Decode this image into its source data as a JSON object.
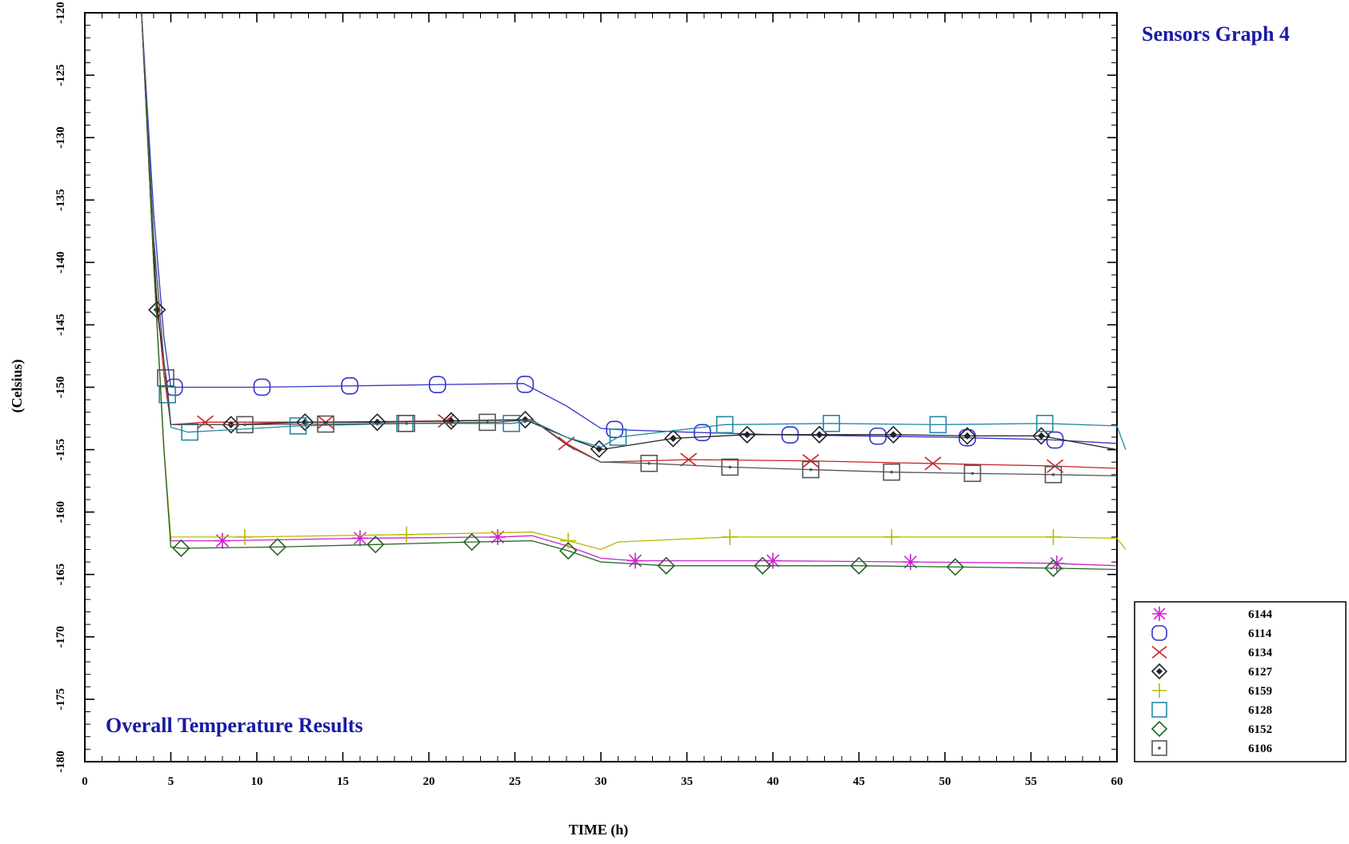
{
  "chart_data": {
    "type": "line",
    "title": "Sensors Graph 4",
    "subtitle": "Overall Temperature Results",
    "xlabel": "TIME (h)",
    "ylabel": "(Celsius)",
    "xlim": [
      0,
      60
    ],
    "ylim": [
      -180,
      -120
    ],
    "xticks": [
      0,
      5,
      10,
      15,
      20,
      25,
      30,
      35,
      40,
      45,
      50,
      55,
      60
    ],
    "yticks": [
      -120,
      -125,
      -130,
      -135,
      -140,
      -145,
      -150,
      -155,
      -160,
      -165,
      -170,
      -175,
      -180
    ],
    "legend_position": "right-bottom-outside",
    "grid": false,
    "series": [
      {
        "name": "6144",
        "color": "#cc22cc",
        "marker": "asterisk",
        "points": [
          [
            3.3,
            -120
          ],
          [
            4,
            -140
          ],
          [
            4.6,
            -155
          ],
          [
            5,
            -162.3
          ],
          [
            8,
            -162.3
          ],
          [
            16,
            -162.1
          ],
          [
            24,
            -162
          ],
          [
            26,
            -161.9
          ],
          [
            28,
            -162.7
          ],
          [
            30,
            -163.7
          ],
          [
            32,
            -163.9
          ],
          [
            40,
            -163.9
          ],
          [
            48,
            -164
          ],
          [
            56,
            -164.1
          ],
          [
            60,
            -164.3
          ]
        ],
        "markers": [
          8,
          16,
          24,
          32,
          40,
          48,
          56.5
        ]
      },
      {
        "name": "6114",
        "color": "#3333cc",
        "marker": "circle",
        "points": [
          [
            3.3,
            -120
          ],
          [
            4,
            -136
          ],
          [
            4.6,
            -146
          ],
          [
            5,
            -150
          ],
          [
            10,
            -150
          ],
          [
            20,
            -149.8
          ],
          [
            25.5,
            -149.7
          ],
          [
            28,
            -151.5
          ],
          [
            30,
            -153.3
          ],
          [
            31,
            -153.4
          ],
          [
            35,
            -153.6
          ],
          [
            40,
            -153.8
          ],
          [
            50,
            -154
          ],
          [
            56,
            -154.2
          ],
          [
            60,
            -154.5
          ]
        ],
        "markers": [
          5.2,
          10.3,
          15.4,
          20.5,
          25.6,
          30.8,
          35.9,
          41,
          46.1,
          51.3,
          56.4
        ]
      },
      {
        "name": "6134",
        "color": "#cc2222",
        "marker": "x",
        "points": [
          [
            3.3,
            -120
          ],
          [
            4,
            -140
          ],
          [
            4.6,
            -149
          ],
          [
            5,
            -153
          ],
          [
            7,
            -152.8
          ],
          [
            14,
            -152.8
          ],
          [
            21,
            -152.7
          ],
          [
            26,
            -152.6
          ],
          [
            28,
            -154.5
          ],
          [
            30,
            -156
          ],
          [
            35,
            -155.8
          ],
          [
            42,
            -155.9
          ],
          [
            49,
            -156.1
          ],
          [
            56,
            -156.3
          ],
          [
            60,
            -156.5
          ]
        ],
        "markers": [
          7,
          14,
          21,
          28,
          35.1,
          42.2,
          49.3,
          56.4
        ]
      },
      {
        "name": "6127",
        "color": "#222222",
        "marker": "diamond-dot",
        "points": [
          [
            3.3,
            -120
          ],
          [
            4.2,
            -143.8
          ],
          [
            4.8,
            -150
          ],
          [
            5,
            -153
          ],
          [
            8.5,
            -153
          ],
          [
            12.8,
            -152.8
          ],
          [
            17,
            -152.8
          ],
          [
            21.3,
            -152.7
          ],
          [
            25.6,
            -152.6
          ],
          [
            28,
            -154
          ],
          [
            30,
            -155
          ],
          [
            34.2,
            -154.1
          ],
          [
            38.5,
            -153.8
          ],
          [
            42.7,
            -153.8
          ],
          [
            47,
            -153.8
          ],
          [
            51.3,
            -153.9
          ],
          [
            55.6,
            -153.9
          ],
          [
            60,
            -155
          ]
        ],
        "markers": [
          4.2,
          8.5,
          12.8,
          17,
          21.3,
          25.6,
          29.9,
          34.2,
          38.5,
          42.7,
          47,
          51.3,
          55.6
        ]
      },
      {
        "name": "6159",
        "color": "#b8b800",
        "marker": "plus",
        "points": [
          [
            3.3,
            -120
          ],
          [
            4,
            -140
          ],
          [
            4.6,
            -155
          ],
          [
            5,
            -162
          ],
          [
            9.3,
            -162
          ],
          [
            18.7,
            -161.8
          ],
          [
            26,
            -161.6
          ],
          [
            28.1,
            -162.3
          ],
          [
            30,
            -163
          ],
          [
            31,
            -162.4
          ],
          [
            37.5,
            -162
          ],
          [
            47,
            -162
          ],
          [
            56.3,
            -162
          ],
          [
            60,
            -162.1
          ],
          [
            60.5,
            -163
          ]
        ],
        "markers": [
          9.3,
          18.7,
          28.1,
          37.5,
          46.9,
          56.3
        ]
      },
      {
        "name": "6128",
        "color": "#2288aa",
        "marker": "square",
        "points": [
          [
            3.3,
            -120
          ],
          [
            4,
            -138
          ],
          [
            4.6,
            -148
          ],
          [
            5,
            -153.2
          ],
          [
            6,
            -153.6
          ],
          [
            12.4,
            -153.1
          ],
          [
            18.6,
            -152.9
          ],
          [
            24.8,
            -152.9
          ],
          [
            26,
            -152.7
          ],
          [
            28,
            -154
          ],
          [
            30,
            -154.8
          ],
          [
            31,
            -154
          ],
          [
            37.2,
            -153
          ],
          [
            43.4,
            -152.9
          ],
          [
            49.6,
            -153
          ],
          [
            55.8,
            -152.9
          ],
          [
            60,
            -153.1
          ],
          [
            60.5,
            -155
          ]
        ],
        "markers": [
          4.8,
          6.1,
          12.4,
          18.6,
          24.8,
          31,
          37.2,
          43.4,
          49.6,
          55.8
        ]
      },
      {
        "name": "6152",
        "color": "#226622",
        "marker": "diamond",
        "points": [
          [
            3.3,
            -120
          ],
          [
            4,
            -140
          ],
          [
            4.6,
            -155
          ],
          [
            5,
            -162.8
          ],
          [
            5.6,
            -162.9
          ],
          [
            11.2,
            -162.8
          ],
          [
            16.9,
            -162.6
          ],
          [
            22.5,
            -162.4
          ],
          [
            26,
            -162.3
          ],
          [
            28.1,
            -163.1
          ],
          [
            30,
            -164
          ],
          [
            33.8,
            -164.3
          ],
          [
            39.4,
            -164.3
          ],
          [
            45,
            -164.3
          ],
          [
            50.6,
            -164.4
          ],
          [
            56.3,
            -164.5
          ],
          [
            60,
            -164.6
          ]
        ],
        "markers": [
          5.6,
          11.2,
          16.9,
          22.5,
          28.1,
          33.8,
          39.4,
          45,
          50.6,
          56.3
        ]
      },
      {
        "name": "6106",
        "color": "#555555",
        "marker": "square-dot",
        "points": [
          [
            3.3,
            -120
          ],
          [
            4,
            -138
          ],
          [
            4.6,
            -148
          ],
          [
            5,
            -153
          ],
          [
            9.3,
            -153
          ],
          [
            18.7,
            -152.9
          ],
          [
            24,
            -152.8
          ],
          [
            26,
            -152.6
          ],
          [
            28.1,
            -154.7
          ],
          [
            30,
            -156
          ],
          [
            32.8,
            -156.1
          ],
          [
            37.5,
            -156.4
          ],
          [
            42.2,
            -156.6
          ],
          [
            46.9,
            -156.8
          ],
          [
            51.6,
            -156.9
          ],
          [
            56.3,
            -157
          ],
          [
            60,
            -157.1
          ]
        ],
        "markers": [
          4.7,
          9.3,
          14,
          18.7,
          23.4,
          32.8,
          37.5,
          42.2,
          46.9,
          51.6,
          56.3
        ]
      }
    ]
  }
}
